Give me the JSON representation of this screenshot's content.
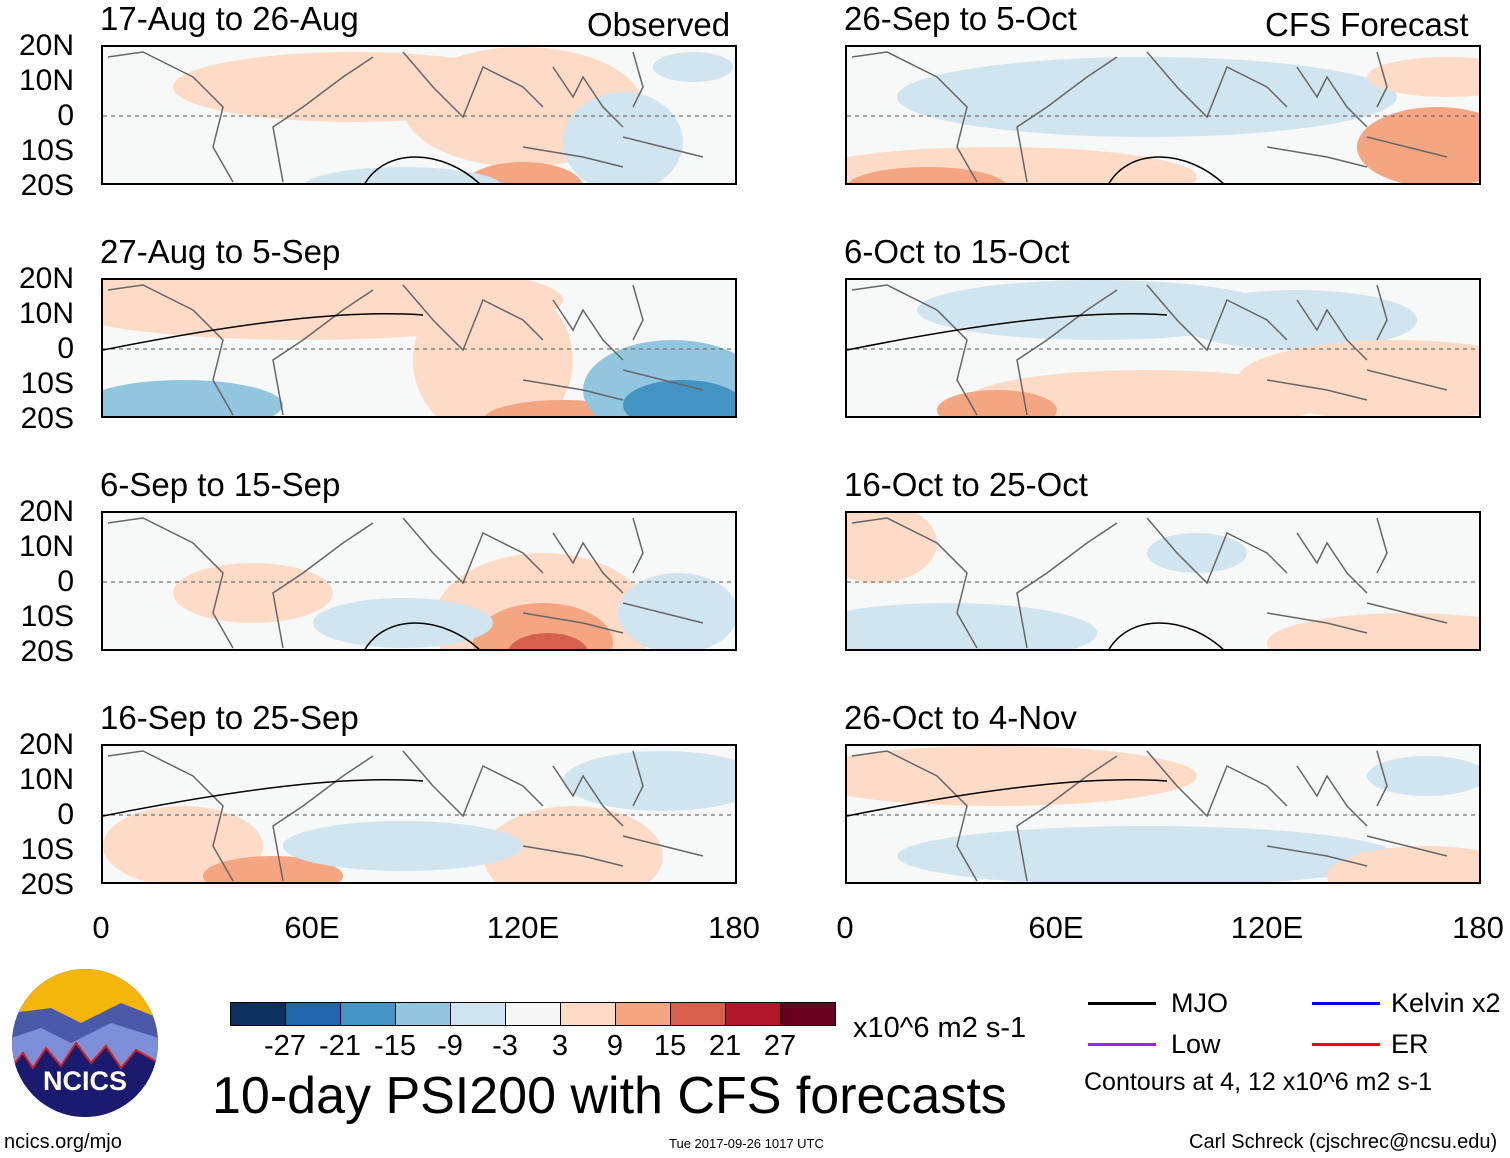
{
  "headers": {
    "observed": "Observed",
    "forecast": "CFS Forecast"
  },
  "panels": {
    "left": [
      "17-Aug to 26-Aug",
      "27-Aug to 5-Sep",
      "6-Sep to 15-Sep",
      "16-Sep to 25-Sep"
    ],
    "right": [
      "26-Sep to 5-Oct",
      "6-Oct to 15-Oct",
      "16-Oct to 25-Oct",
      "26-Oct to 4-Nov"
    ]
  },
  "lat_labels": [
    "20N",
    "10N",
    "0",
    "10S",
    "20S"
  ],
  "lon_labels": [
    "0",
    "60E",
    "120E",
    "180"
  ],
  "colorbar": {
    "colors": [
      "#0b3060",
      "#2166ac",
      "#4393c3",
      "#92c5de",
      "#d1e5f0",
      "#f7f7f7",
      "#fddbc7",
      "#f4a582",
      "#d6604d",
      "#b2182b",
      "#67001f"
    ],
    "labels": [
      "-27",
      "-21",
      "-15",
      "-9",
      "-3",
      "3",
      "9",
      "15",
      "21",
      "27"
    ],
    "units": "x10^6 m2 s-1"
  },
  "title": "10-day PSI200 with CFS forecasts",
  "legend": {
    "items": [
      {
        "label": "MJO",
        "color": "#000000"
      },
      {
        "label": "Kelvin x2",
        "color": "#0000ff"
      },
      {
        "label": "Low",
        "color": "#a020f0"
      },
      {
        "label": "ER",
        "color": "#ff0000"
      }
    ],
    "contours_note": "Contours at 4, 12 x10^6 m2 s-1"
  },
  "logo_text": "NCICS",
  "footer": {
    "url": "ncics.org/mjo",
    "timestamp": "Tue 2017-09-26 1017 UTC",
    "author": "Carl Schreck (cjschrec@ncsu.edu)"
  }
}
